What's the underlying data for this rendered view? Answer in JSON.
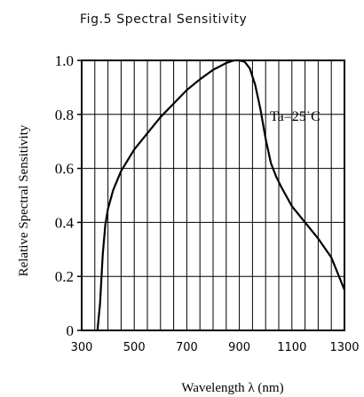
{
  "chart_data": {
    "type": "line",
    "title": "Fig.5 Spectral Sensitivity",
    "xlabel": "Wavelength λ (nm)",
    "ylabel": "Relative Spectral Sensitivity",
    "xlim": [
      300,
      1300
    ],
    "ylim": [
      0,
      1.0
    ],
    "xticks": [
      300,
      500,
      700,
      900,
      1100,
      1300
    ],
    "xtick_labels": [
      "300",
      "500",
      "700",
      "900",
      "1100",
      "1300"
    ],
    "yticks": [
      0,
      0.2,
      0.4,
      0.6,
      0.8,
      1.0
    ],
    "ytick_labels": [
      "0",
      "0.2",
      "0.4",
      "0.6",
      "0.8",
      "1.0"
    ],
    "grid": true,
    "annotation": "Ta=25˙C",
    "series": [
      {
        "x": [
          360,
          370,
          380,
          390,
          400,
          420,
          450,
          500,
          550,
          600,
          650,
          700,
          750,
          800,
          850,
          880,
          900,
          920,
          940,
          960,
          980,
          1000,
          1020,
          1040,
          1060,
          1080,
          1100,
          1150,
          1200,
          1250,
          1300
        ],
        "y": [
          0.0,
          0.1,
          0.28,
          0.39,
          0.45,
          0.52,
          0.59,
          0.67,
          0.73,
          0.79,
          0.84,
          0.89,
          0.93,
          0.965,
          0.99,
          1.0,
          1.0,
          0.995,
          0.97,
          0.91,
          0.82,
          0.71,
          0.62,
          0.57,
          0.53,
          0.495,
          0.46,
          0.4,
          0.34,
          0.27,
          0.15
        ]
      }
    ]
  }
}
